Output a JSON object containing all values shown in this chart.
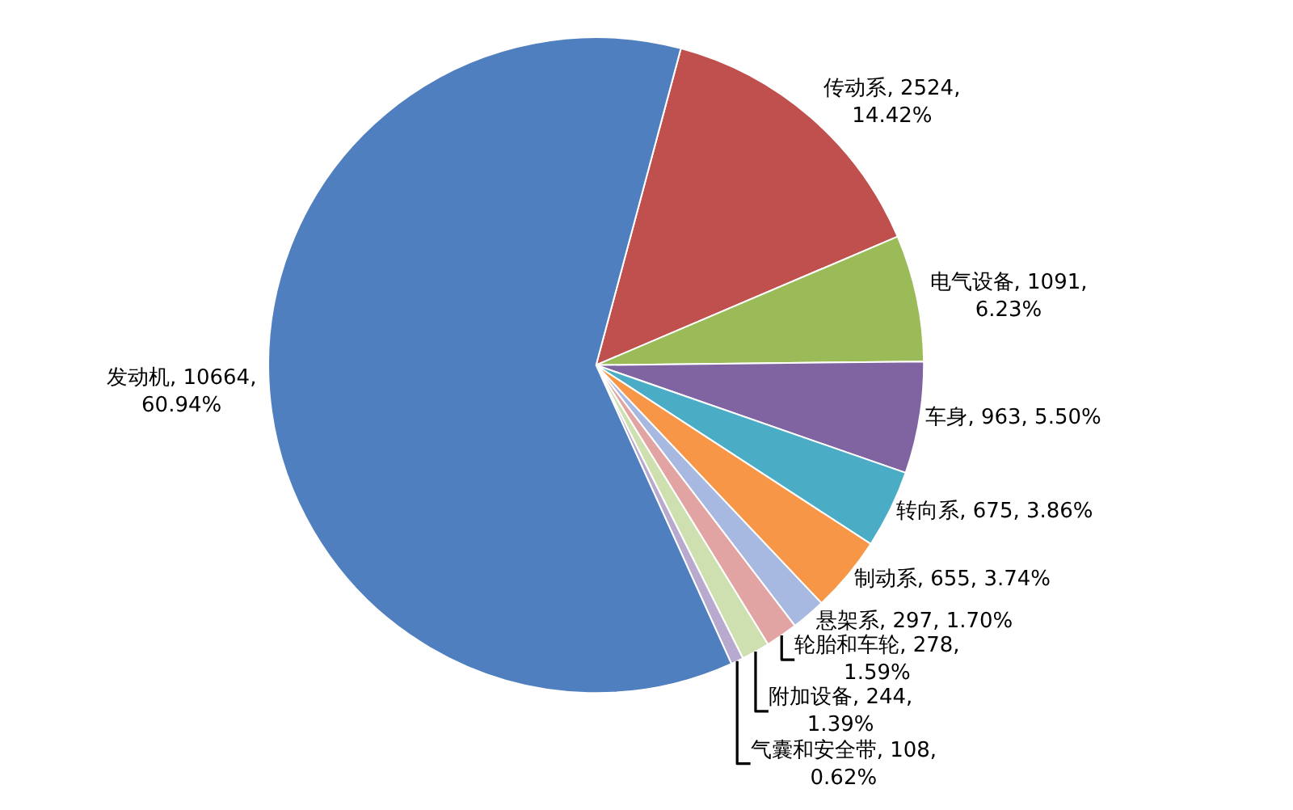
{
  "chart_data": {
    "type": "pie",
    "categories": [
      "传动系",
      "电气设备",
      "车身",
      "转向系",
      "制动系",
      "悬架系",
      "轮胎和车轮",
      "附加设备",
      "气囊和安全带",
      "发动机"
    ],
    "values": [
      2524,
      1091,
      963,
      675,
      655,
      297,
      278,
      244,
      108,
      10664
    ],
    "colors": [
      "#c0504d",
      "#9bbb59",
      "#8064a2",
      "#4bacc6",
      "#f79646",
      "#a7b9e0",
      "#e2a4a3",
      "#cfe0b0",
      "#b8a9cf",
      "#4f7fbf"
    ],
    "value_labels": [
      "2524,\n14.42%",
      "1091,\n6.23%",
      "963, 5.50%",
      "675, 3.86%",
      "655, 3.74%",
      "297, 1.70%",
      "278,\n1.59%",
      "244,\n1.39%",
      "108,\n0.62%",
      "10664,\n60.94%"
    ]
  }
}
